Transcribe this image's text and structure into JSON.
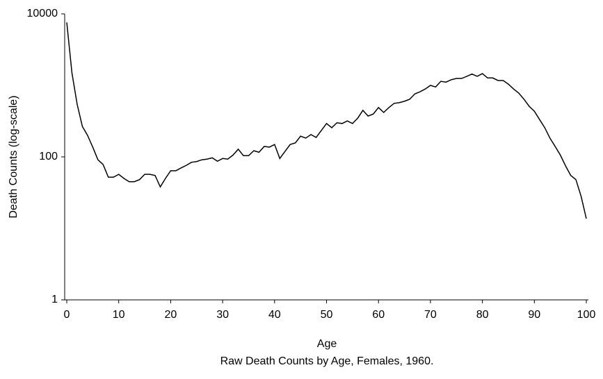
{
  "chart_data": {
    "type": "line",
    "title": "Raw Death Counts by Age, Females, 1960.",
    "x_label": "Age",
    "y_label": "Death Counts (log-scale)",
    "x": [
      0,
      1,
      2,
      3,
      4,
      5,
      6,
      7,
      8,
      9,
      10,
      11,
      12,
      13,
      14,
      15,
      16,
      17,
      18,
      19,
      20,
      21,
      22,
      23,
      24,
      25,
      26,
      27,
      28,
      29,
      30,
      31,
      32,
      33,
      34,
      35,
      36,
      37,
      38,
      39,
      40,
      41,
      42,
      43,
      44,
      45,
      46,
      47,
      48,
      49,
      50,
      51,
      52,
      53,
      54,
      55,
      56,
      57,
      58,
      59,
      60,
      61,
      62,
      63,
      64,
      65,
      66,
      67,
      68,
      69,
      70,
      71,
      72,
      73,
      74,
      75,
      76,
      77,
      78,
      79,
      80,
      81,
      82,
      83,
      84,
      85,
      86,
      87,
      88,
      89,
      90,
      91,
      92,
      93,
      94,
      95,
      96,
      97,
      98,
      99,
      100
    ],
    "series": [
      {
        "name": "Females 1960",
        "color": "#000000",
        "values": [
          7600,
          1490,
          545,
          267,
          200,
          137,
          91,
          78,
          52,
          52,
          57,
          50,
          45,
          45,
          48,
          57,
          57,
          55,
          38,
          50,
          64,
          64,
          70,
          76,
          84,
          86,
          91,
          93,
          97,
          87,
          95,
          93,
          106,
          128,
          104,
          104,
          122,
          116,
          140,
          137,
          149,
          95,
          119,
          149,
          157,
          195,
          183,
          205,
          187,
          234,
          293,
          256,
          300,
          293,
          318,
          293,
          348,
          447,
          372,
          398,
          490,
          418,
          490,
          560,
          573,
          600,
          640,
          760,
          815,
          890,
          1000,
          950,
          1140,
          1110,
          1200,
          1250,
          1250,
          1340,
          1440,
          1340,
          1460,
          1270,
          1270,
          1170,
          1170,
          1040,
          890,
          780,
          640,
          510,
          435,
          333,
          256,
          183,
          140,
          106,
          75,
          55,
          48,
          28,
          13.7
        ]
      }
    ],
    "xlim": [
      -0.4,
      100.4
    ],
    "xticks": [
      0,
      10,
      20,
      30,
      40,
      50,
      60,
      70,
      80,
      90,
      100
    ],
    "ylim": [
      1,
      10000
    ],
    "yticks": [
      1,
      100,
      10000
    ],
    "log_y": true,
    "grid": false
  }
}
